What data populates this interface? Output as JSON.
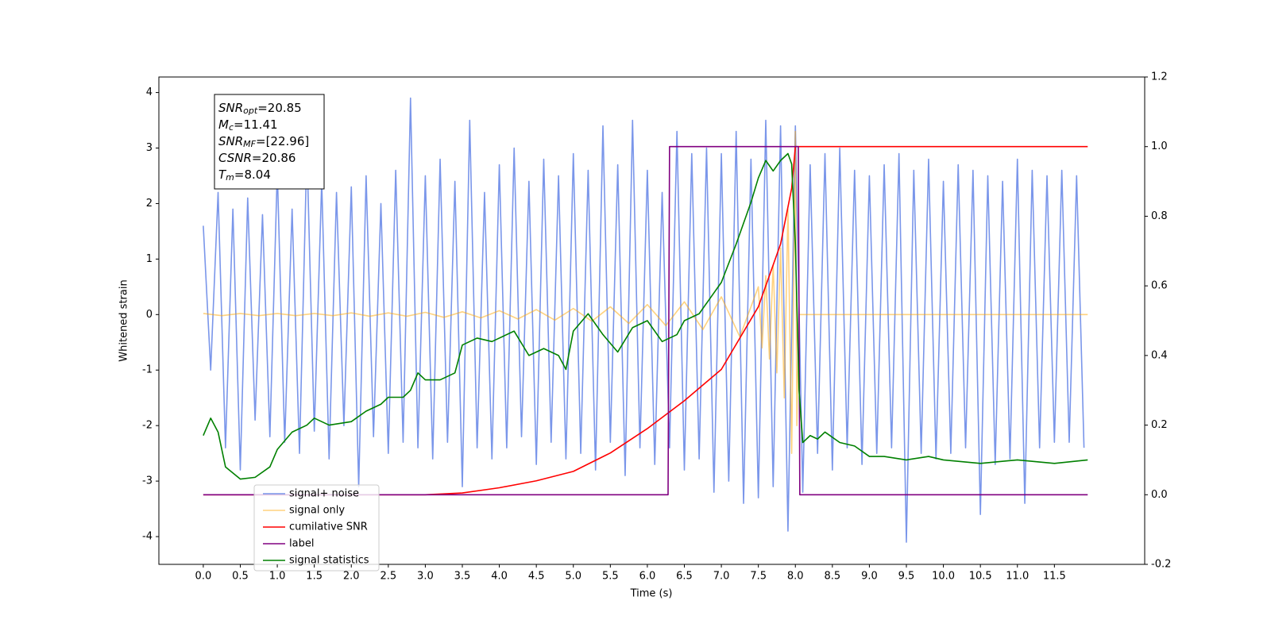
{
  "chart_data": {
    "type": "line",
    "x_label": "Time (s)",
    "y_label": "Whitened strain",
    "xlim": [
      -0.6,
      12.72
    ],
    "ylim": [
      -4.5,
      4.28
    ],
    "y2lim": [
      -0.2,
      1.2
    ],
    "xticks": [
      {
        "value": 0,
        "label": "0.0"
      },
      0.5,
      {
        "value": 1,
        "label": "1.0"
      },
      1.5,
      {
        "value": 2,
        "label": "2.0"
      },
      2.5,
      {
        "value": 3,
        "label": "3.0"
      },
      3.5,
      {
        "value": 4,
        "label": "4.0"
      },
      4.5,
      {
        "value": 5,
        "label": "5.0"
      },
      5.5,
      {
        "value": 6,
        "label": "6.0"
      },
      6.5,
      {
        "value": 7,
        "label": "7.0"
      },
      7.5,
      {
        "value": 8,
        "label": "8.0"
      },
      8.5,
      {
        "value": 9,
        "label": "9.0"
      },
      9.5,
      {
        "value": 10,
        "label": "10.0"
      },
      10.5,
      {
        "value": 11,
        "label": "11.0"
      },
      11.5
    ],
    "yticks": [
      -4,
      -3,
      -2,
      -1,
      0,
      1,
      2,
      3,
      4
    ],
    "y2ticks": [
      -0.2,
      {
        "value": 0,
        "label": "0.0"
      },
      0.2,
      0.4,
      0.6,
      0.8,
      {
        "value": 1,
        "label": "1.0"
      },
      1.2
    ],
    "legend": "lower left",
    "annotations": [
      {
        "symbol": "SNR",
        "sub": "opt",
        "text": "=20.85"
      },
      {
        "symbol": "M",
        "sub": "c",
        "text": "=11.41"
      },
      {
        "symbol": "SNR",
        "sub": "MF",
        "text": "=[22.96]"
      },
      {
        "symbol": "CSNR",
        "sub": "",
        "text": "=20.86"
      },
      {
        "symbol": "T",
        "sub": "m",
        "text": "=8.04"
      }
    ],
    "series": [
      {
        "name": "signal+ noise",
        "color": "#4169e1",
        "alpha": 0.7,
        "x": [
          0,
          0.1,
          0.2,
          0.3,
          0.4,
          0.5,
          0.6,
          0.7,
          0.8,
          0.9,
          1,
          1.1,
          1.2,
          1.3,
          1.4,
          1.5,
          1.6,
          1.7,
          1.8,
          1.9,
          2,
          2.1,
          2.2,
          2.3,
          2.4,
          2.5,
          2.6,
          2.7,
          2.8,
          2.9,
          3,
          3.1,
          3.2,
          3.3,
          3.4,
          3.5,
          3.6,
          3.7,
          3.8,
          3.9,
          4,
          4.1,
          4.2,
          4.3,
          4.4,
          4.5,
          4.6,
          4.7,
          4.8,
          4.9,
          5,
          5.1,
          5.2,
          5.3,
          5.4,
          5.5,
          5.6,
          5.7,
          5.8,
          5.9,
          6,
          6.1,
          6.2,
          6.3,
          6.4,
          6.5,
          6.6,
          6.7,
          6.8,
          6.9,
          7,
          7.1,
          7.2,
          7.3,
          7.4,
          7.5,
          7.6,
          7.7,
          7.8,
          7.9,
          8,
          8.1,
          8.2,
          8.3,
          8.4,
          8.5,
          8.6,
          8.7,
          8.8,
          8.9,
          9,
          9.1,
          9.2,
          9.3,
          9.4,
          9.5,
          9.6,
          9.7,
          9.8,
          9.9,
          10,
          10.1,
          10.2,
          10.3,
          10.4,
          10.5,
          10.6,
          10.7,
          10.8,
          10.9,
          11,
          11.1,
          11.2,
          11.3,
          11.4,
          11.5,
          11.6,
          11.7,
          11.8,
          11.9
        ],
        "values": [
          1.6,
          -1.0,
          2.2,
          -2.4,
          1.9,
          -2.8,
          2.1,
          -1.9,
          1.8,
          -2.2,
          2.6,
          -2.3,
          1.9,
          -2.5,
          3.0,
          -2.1,
          2.4,
          -2.6,
          2.2,
          -2.0,
          2.3,
          -3.1,
          2.5,
          -2.2,
          2.0,
          -2.5,
          2.6,
          -2.3,
          3.9,
          -2.4,
          2.5,
          -2.6,
          2.8,
          -2.3,
          2.4,
          -3.1,
          3.5,
          -2.4,
          2.2,
          -2.6,
          2.7,
          -2.4,
          3.0,
          -2.2,
          2.4,
          -2.7,
          2.8,
          -2.3,
          2.5,
          -2.6,
          2.9,
          -2.5,
          2.6,
          -2.8,
          3.4,
          -2.3,
          2.7,
          -2.9,
          3.5,
          -2.4,
          2.6,
          -2.7,
          2.2,
          -2.4,
          3.3,
          -2.8,
          2.9,
          -2.6,
          3.0,
          -3.2,
          2.9,
          -3.0,
          3.3,
          -3.4,
          2.8,
          -3.3,
          3.5,
          -3.1,
          3.4,
          -3.9,
          3.4,
          -3.2,
          2.7,
          -2.5,
          2.9,
          -2.8,
          3.0,
          -2.4,
          2.6,
          -2.7,
          2.5,
          -2.5,
          2.7,
          -2.4,
          2.9,
          -4.1,
          2.6,
          -2.5,
          2.8,
          -2.6,
          2.4,
          -2.5,
          2.7,
          -2.4,
          2.6,
          -3.6,
          2.5,
          -2.7,
          2.4,
          -2.6,
          2.8,
          -3.4,
          2.6,
          -2.4,
          2.5,
          -2.3,
          2.6,
          -2.3,
          2.5,
          -2.4
        ]
      },
      {
        "name": "signal only",
        "color": "#ffa500",
        "alpha": 0.5,
        "x": [
          0,
          0.25,
          0.5,
          0.75,
          1,
          1.25,
          1.5,
          1.75,
          2,
          2.25,
          2.5,
          2.75,
          3,
          3.25,
          3.5,
          3.75,
          4,
          4.25,
          4.5,
          4.75,
          5,
          5.25,
          5.5,
          5.75,
          6,
          6.25,
          6.5,
          6.75,
          7,
          7.25,
          7.5,
          7.55,
          7.6,
          7.65,
          7.7,
          7.75,
          7.8,
          7.85,
          7.9,
          7.95,
          8,
          8.02,
          8.05,
          11.95
        ],
        "values": [
          0.02,
          -0.02,
          0.02,
          -0.02,
          0.02,
          -0.02,
          0.02,
          -0.02,
          0.03,
          -0.03,
          0.03,
          -0.03,
          0.04,
          -0.05,
          0.05,
          -0.06,
          0.07,
          -0.08,
          0.09,
          -0.1,
          0.11,
          -0.12,
          0.14,
          -0.16,
          0.18,
          -0.2,
          0.23,
          -0.27,
          0.32,
          -0.4,
          0.5,
          -0.6,
          0.7,
          -0.8,
          0.9,
          -1.05,
          1.2,
          -1.5,
          1.9,
          -2.5,
          3.3,
          -2.0,
          0,
          0
        ]
      },
      {
        "name": "cumilative SNR",
        "color": "#ff0000",
        "axis": "y2",
        "x": [
          0,
          3,
          3.5,
          4,
          4.5,
          5,
          5.5,
          6,
          6.5,
          7,
          7.5,
          7.8,
          7.95,
          8,
          11.95
        ],
        "values": [
          0,
          0,
          0.005,
          0.02,
          0.04,
          0.067,
          0.12,
          0.19,
          0.27,
          0.36,
          0.54,
          0.72,
          0.88,
          1,
          1
        ]
      },
      {
        "name": "label",
        "color": "#800080",
        "axis": "y2",
        "x": [
          0,
          6.28,
          6.3,
          8.04,
          8.06,
          11.95
        ],
        "values": [
          0,
          0,
          1,
          1,
          0,
          0
        ]
      },
      {
        "name": "signal statistics",
        "color": "#008000",
        "axis": "y2",
        "x": [
          0,
          0.1,
          0.2,
          0.3,
          0.5,
          0.7,
          0.9,
          1,
          1.2,
          1.4,
          1.5,
          1.7,
          2,
          2.2,
          2.4,
          2.5,
          2.7,
          2.8,
          2.9,
          3,
          3.2,
          3.4,
          3.5,
          3.7,
          3.9,
          4,
          4.2,
          4.4,
          4.6,
          4.8,
          4.9,
          5,
          5.2,
          5.4,
          5.6,
          5.8,
          6,
          6.2,
          6.4,
          6.5,
          6.7,
          6.9,
          7,
          7.2,
          7.4,
          7.5,
          7.6,
          7.7,
          7.8,
          7.9,
          7.95,
          8,
          8.05,
          8.1,
          8.2,
          8.3,
          8.4,
          8.6,
          8.8,
          9,
          9.2,
          9.5,
          9.8,
          10,
          10.5,
          11,
          11.5,
          11.95
        ],
        "values": [
          0.17,
          0.22,
          0.18,
          0.08,
          0.045,
          0.05,
          0.08,
          0.13,
          0.18,
          0.2,
          0.22,
          0.2,
          0.21,
          0.24,
          0.26,
          0.28,
          0.28,
          0.3,
          0.35,
          0.33,
          0.33,
          0.35,
          0.43,
          0.45,
          0.44,
          0.45,
          0.47,
          0.4,
          0.42,
          0.4,
          0.36,
          0.47,
          0.52,
          0.46,
          0.41,
          0.48,
          0.5,
          0.44,
          0.46,
          0.5,
          0.52,
          0.58,
          0.61,
          0.72,
          0.84,
          0.91,
          0.96,
          0.93,
          0.96,
          0.98,
          0.95,
          0.72,
          0.3,
          0.15,
          0.17,
          0.16,
          0.18,
          0.15,
          0.14,
          0.11,
          0.11,
          0.1,
          0.11,
          0.1,
          0.09,
          0.1,
          0.09,
          0.1
        ]
      }
    ]
  }
}
